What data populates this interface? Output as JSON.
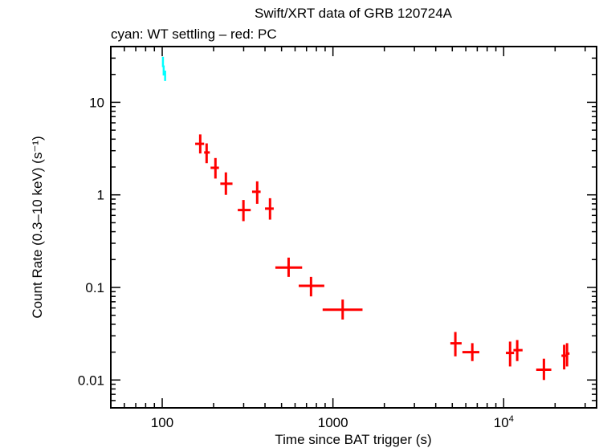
{
  "chart_data": {
    "type": "scatter",
    "title": "Swift/XRT data of GRB 120724A",
    "subtitle": "cyan: WT settling – red: PC",
    "xlabel": "Time since BAT trigger (s)",
    "ylabel": "Count Rate (0.3–10 keV) (s⁻¹)",
    "xscale": "log",
    "yscale": "log",
    "xlim": [
      50,
      35000
    ],
    "ylim": [
      0.005,
      40
    ],
    "x_ticks": [
      {
        "v": 100,
        "label": "100"
      },
      {
        "v": 1000,
        "label": "1000"
      },
      {
        "v": 10000,
        "label": "10⁴"
      }
    ],
    "y_ticks": [
      {
        "v": 10,
        "label": "10"
      },
      {
        "v": 1,
        "label": "1"
      },
      {
        "v": 0.1,
        "label": "0.1"
      },
      {
        "v": 0.01,
        "label": "0.01"
      }
    ],
    "grid": false,
    "series": [
      {
        "color": "#00ffff",
        "points": [
          {
            "x": 101,
            "y": 27,
            "xlo": 100.5,
            "xhi": 101.5,
            "ylo": 24,
            "yhi": 31
          },
          {
            "x": 102,
            "y": 22,
            "xlo": 101.5,
            "xhi": 102.7,
            "ylo": 19.5,
            "yhi": 25
          },
          {
            "x": 104,
            "y": 19,
            "xlo": 103,
            "xhi": 105,
            "ylo": 17,
            "yhi": 22
          }
        ]
      },
      {
        "color": "#ff0000",
        "points": [
          {
            "x": 167,
            "y": 3.56,
            "xlo": 156,
            "xhi": 176,
            "ylo": 2.8,
            "yhi": 4.5
          },
          {
            "x": 182,
            "y": 2.87,
            "xlo": 176,
            "xhi": 190,
            "ylo": 2.2,
            "yhi": 3.6
          },
          {
            "x": 205,
            "y": 1.96,
            "xlo": 192,
            "xhi": 215,
            "ylo": 1.5,
            "yhi": 2.5
          },
          {
            "x": 236,
            "y": 1.32,
            "xlo": 219,
            "xhi": 258,
            "ylo": 1.0,
            "yhi": 1.75
          },
          {
            "x": 299,
            "y": 0.686,
            "xlo": 277,
            "xhi": 330,
            "ylo": 0.52,
            "yhi": 0.88
          },
          {
            "x": 360,
            "y": 1.08,
            "xlo": 336,
            "xhi": 377,
            "ylo": 0.8,
            "yhi": 1.4
          },
          {
            "x": 428,
            "y": 0.71,
            "xlo": 400,
            "xhi": 450,
            "ylo": 0.54,
            "yhi": 0.92
          },
          {
            "x": 550,
            "y": 0.164,
            "xlo": 460,
            "xhi": 660,
            "ylo": 0.13,
            "yhi": 0.21
          },
          {
            "x": 744,
            "y": 0.104,
            "xlo": 630,
            "xhi": 890,
            "ylo": 0.08,
            "yhi": 0.13
          },
          {
            "x": 1140,
            "y": 0.0574,
            "xlo": 870,
            "xhi": 1490,
            "ylo": 0.045,
            "yhi": 0.074
          },
          {
            "x": 5210,
            "y": 0.0249,
            "xlo": 4870,
            "xhi": 5670,
            "ylo": 0.018,
            "yhi": 0.033
          },
          {
            "x": 6550,
            "y": 0.02,
            "xlo": 5730,
            "xhi": 7200,
            "ylo": 0.016,
            "yhi": 0.025
          },
          {
            "x": 10900,
            "y": 0.0196,
            "xlo": 10300,
            "xhi": 11500,
            "ylo": 0.014,
            "yhi": 0.026
          },
          {
            "x": 12000,
            "y": 0.021,
            "xlo": 11400,
            "xhi": 12900,
            "ylo": 0.016,
            "yhi": 0.027
          },
          {
            "x": 17200,
            "y": 0.0129,
            "xlo": 15500,
            "xhi": 19000,
            "ylo": 0.01,
            "yhi": 0.017
          },
          {
            "x": 22600,
            "y": 0.0183,
            "xlo": 21800,
            "xhi": 23200,
            "ylo": 0.013,
            "yhi": 0.024
          },
          {
            "x": 23500,
            "y": 0.0193,
            "xlo": 23100,
            "xhi": 24300,
            "ylo": 0.014,
            "yhi": 0.025
          }
        ]
      }
    ]
  }
}
